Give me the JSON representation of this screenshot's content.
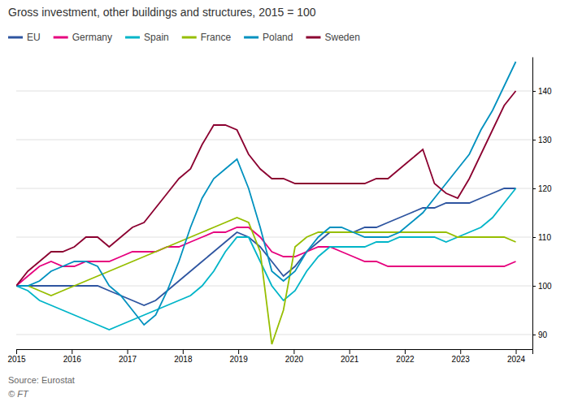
{
  "chart_data": {
    "type": "line",
    "title": "Gross investment, other buildings and structures, 2015 = 100",
    "annotations": [
      "Source: Eurostat",
      "© FT"
    ],
    "x": [
      2015,
      2015.2093023256,
      2015.4186046512,
      2015.6279069767,
      2015.8372093023,
      2016.0465116279,
      2016.2558139535,
      2016.4651162791,
      2016.6744186047,
      2016.8837209302,
      2017.0930232558,
      2017.3023255814,
      2017.511627907,
      2017.7209302326,
      2017.9302325581,
      2018.1395348837,
      2018.3488372093,
      2018.5581395349,
      2018.7674418605,
      2018.976744186,
      2019.1860465116,
      2019.3953488372,
      2019.6046511628,
      2019.8139534884,
      2020.023255814,
      2020.2325581395,
      2020.4418604651,
      2020.6511627907,
      2020.8604651163,
      2021.0697674419,
      2021.2790697674,
      2021.488372093,
      2021.6976744186,
      2021.9069767442,
      2022.1162790698,
      2022.3255813953,
      2022.5348837209,
      2022.7441860465,
      2022.9534883721,
      2023.1627906977,
      2023.3720930233,
      2023.5813953488,
      2023.7906976744,
      2024
    ],
    "series": [
      {
        "name": "EU",
        "color": "#2e55a0",
        "values": [
          100,
          100,
          100,
          100,
          100,
          100,
          100,
          100,
          99,
          98,
          97,
          96,
          97,
          99,
          101,
          103,
          105,
          107,
          109,
          111,
          110,
          108,
          105,
          102,
          104,
          107,
          109,
          111,
          111,
          111,
          112,
          112,
          113,
          114,
          115,
          116,
          116,
          117,
          117,
          117,
          118,
          119,
          120,
          120
        ]
      },
      {
        "name": "Germany",
        "color": "#e6007e",
        "values": [
          100,
          102,
          104,
          105,
          104,
          104,
          105,
          105,
          105,
          106,
          107,
          107,
          107,
          108,
          108,
          109,
          110,
          111,
          111,
          112,
          112,
          110,
          107,
          106,
          106,
          107,
          108,
          108,
          107,
          106,
          105,
          105,
          104,
          104,
          104,
          104,
          104,
          104,
          104,
          104,
          104,
          104,
          104,
          105
        ]
      },
      {
        "name": "Spain",
        "color": "#00b5c8",
        "values": [
          100,
          99,
          97,
          96,
          95,
          94,
          93,
          92,
          91,
          92,
          93,
          94,
          95,
          96,
          97,
          98,
          100,
          103,
          107,
          110,
          110,
          105,
          100,
          97,
          99,
          103,
          106,
          108,
          108,
          108,
          108,
          109,
          109,
          110,
          110,
          110,
          110,
          109,
          110,
          111,
          112,
          114,
          117,
          120
        ]
      },
      {
        "name": "France",
        "color": "#96be00",
        "values": [
          100,
          100,
          99,
          98,
          99,
          100,
          101,
          102,
          103,
          104,
          105,
          106,
          107,
          108,
          109,
          110,
          111,
          112,
          113,
          114,
          113,
          107,
          88,
          95,
          108,
          110,
          111,
          111,
          111,
          111,
          111,
          111,
          111,
          111,
          111,
          111,
          111,
          111,
          110,
          110,
          110,
          110,
          110,
          109
        ]
      },
      {
        "name": "Poland",
        "color": "#0091bf",
        "values": [
          100,
          100,
          101,
          103,
          104,
          105,
          105,
          104,
          100,
          98,
          95,
          92,
          94,
          99,
          105,
          112,
          118,
          122,
          124,
          126,
          120,
          112,
          103,
          101,
          103,
          107,
          110,
          112,
          112,
          111,
          110,
          110,
          110,
          111,
          113,
          115,
          118,
          121,
          124,
          127,
          132,
          136,
          141,
          146
        ]
      },
      {
        "name": "Sweden",
        "color": "#8b0030",
        "values": [
          100,
          103,
          105,
          107,
          107,
          108,
          110,
          110,
          108,
          110,
          112,
          113,
          116,
          119,
          122,
          124,
          129,
          133,
          133,
          132,
          127,
          124,
          122,
          122,
          121,
          121,
          121,
          121,
          121,
          121,
          121,
          122,
          122,
          124,
          126,
          128,
          121,
          119,
          118,
          122,
          127,
          132,
          137,
          140
        ]
      }
    ],
    "xlim": [
      2015,
      2024.3
    ],
    "xticks": [
      2015,
      2016,
      2017,
      2018,
      2019,
      2020,
      2021,
      2022,
      2023,
      2024
    ],
    "ylim": [
      87,
      147
    ],
    "yticks": [
      90,
      100,
      110,
      120,
      130,
      140
    ],
    "grid": true,
    "legend": "top-left"
  }
}
